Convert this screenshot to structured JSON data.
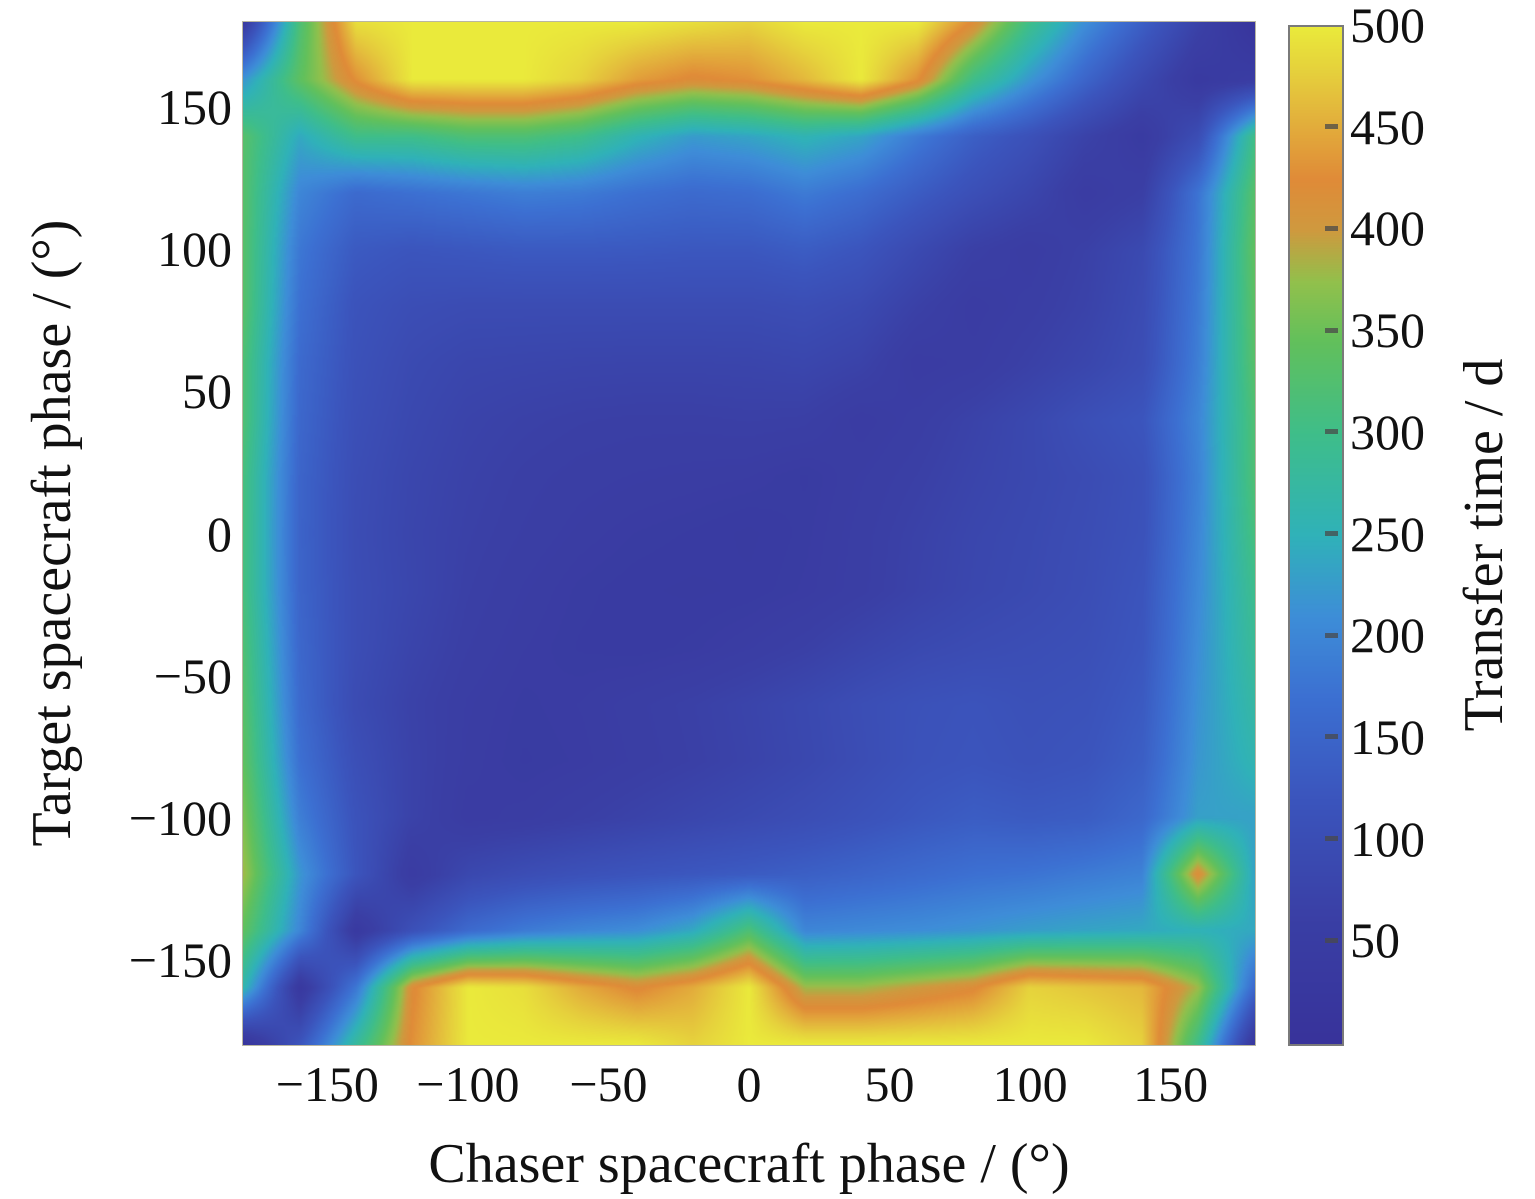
{
  "figure": {
    "background": "#ffffff",
    "text_color": "#111111"
  },
  "chart_data": {
    "type": "heatmap",
    "title": "",
    "xlabel": "Chaser spacecraft phase / (°)",
    "ylabel": "Target spacecraft phase / (°)",
    "colorbar_label": "Transfer time / d",
    "x_range": [
      -180,
      180
    ],
    "y_range": [
      -180,
      180
    ],
    "value_range": [
      0,
      500
    ],
    "x_ticks": [
      -150,
      -100,
      -50,
      0,
      50,
      100,
      150
    ],
    "y_ticks": [
      150,
      100,
      50,
      0,
      -50,
      -100,
      -150
    ],
    "colorbar_ticks": [
      500,
      450,
      400,
      350,
      300,
      250,
      200,
      150,
      100,
      50
    ],
    "grid_on": false,
    "legend_position": "colorbar-right",
    "colormap": {
      "name": "parula-like",
      "stops": [
        [
          0,
          "#38339b"
        ],
        [
          60,
          "#3a3fa5"
        ],
        [
          120,
          "#3b55bd"
        ],
        [
          170,
          "#3c70d2"
        ],
        [
          210,
          "#3e8ed8"
        ],
        [
          250,
          "#30b2b9"
        ],
        [
          300,
          "#3fbe8a"
        ],
        [
          345,
          "#62c05c"
        ],
        [
          375,
          "#93c04c"
        ],
        [
          400,
          "#cf9a3f"
        ],
        [
          425,
          "#e08b38"
        ],
        [
          455,
          "#e3b23c"
        ],
        [
          480,
          "#e6d33c"
        ],
        [
          500,
          "#eaea3b"
        ]
      ]
    },
    "grid_x": [
      -180,
      -160,
      -140,
      -120,
      -100,
      -80,
      -60,
      -40,
      -20,
      0,
      20,
      40,
      60,
      80,
      100,
      120,
      140,
      160,
      180
    ],
    "grid_y": [
      180,
      160,
      140,
      120,
      100,
      80,
      60,
      40,
      20,
      0,
      -20,
      -40,
      -60,
      -80,
      -100,
      -120,
      -140,
      -160,
      -180
    ],
    "values": [
      [
        45,
        320,
        490,
        500,
        500,
        500,
        500,
        500,
        490,
        480,
        500,
        500,
        500,
        420,
        300,
        210,
        140,
        70,
        10
      ],
      [
        220,
        340,
        430,
        500,
        500,
        500,
        480,
        440,
        420,
        430,
        460,
        500,
        430,
        300,
        220,
        150,
        90,
        35,
        50
      ],
      [
        330,
        240,
        300,
        300,
        320,
        320,
        300,
        255,
        225,
        235,
        255,
        235,
        185,
        140,
        110,
        70,
        40,
        100,
        300
      ],
      [
        330,
        200,
        160,
        170,
        180,
        190,
        185,
        170,
        160,
        165,
        185,
        165,
        135,
        105,
        80,
        45,
        60,
        175,
        330
      ],
      [
        330,
        180,
        130,
        120,
        125,
        130,
        130,
        128,
        125,
        125,
        135,
        120,
        90,
        62,
        48,
        65,
        90,
        180,
        340
      ],
      [
        330,
        170,
        115,
        100,
        95,
        95,
        95,
        95,
        95,
        95,
        100,
        90,
        65,
        45,
        55,
        70,
        95,
        185,
        335
      ],
      [
        320,
        160,
        110,
        90,
        80,
        78,
        76,
        75,
        75,
        76,
        80,
        70,
        45,
        50,
        65,
        80,
        100,
        190,
        330
      ],
      [
        320,
        155,
        105,
        85,
        72,
        66,
        62,
        60,
        60,
        62,
        60,
        45,
        55,
        70,
        85,
        105,
        120,
        200,
        320
      ],
      [
        310,
        150,
        100,
        80,
        68,
        60,
        55,
        52,
        50,
        48,
        42,
        52,
        62,
        75,
        85,
        95,
        110,
        195,
        320
      ],
      [
        310,
        148,
        98,
        78,
        65,
        57,
        50,
        45,
        42,
        38,
        44,
        55,
        68,
        80,
        88,
        98,
        112,
        200,
        310
      ],
      [
        310,
        150,
        100,
        80,
        62,
        52,
        44,
        40,
        38,
        40,
        46,
        56,
        70,
        82,
        90,
        100,
        118,
        205,
        295
      ],
      [
        320,
        155,
        100,
        75,
        58,
        48,
        42,
        40,
        44,
        52,
        62,
        76,
        88,
        95,
        100,
        105,
        122,
        210,
        285
      ],
      [
        330,
        160,
        95,
        68,
        52,
        44,
        48,
        56,
        64,
        74,
        86,
        100,
        110,
        115,
        108,
        112,
        130,
        215,
        272
      ],
      [
        340,
        170,
        105,
        70,
        50,
        42,
        46,
        54,
        62,
        72,
        84,
        98,
        112,
        118,
        112,
        118,
        138,
        220,
        258
      ],
      [
        360,
        190,
        115,
        70,
        45,
        50,
        60,
        70,
        80,
        90,
        100,
        112,
        125,
        135,
        130,
        135,
        155,
        230,
        232
      ],
      [
        380,
        220,
        120,
        45,
        85,
        100,
        110,
        118,
        125,
        132,
        140,
        150,
        160,
        170,
        175,
        185,
        195,
        420,
        235
      ],
      [
        340,
        200,
        35,
        110,
        160,
        185,
        200,
        210,
        240,
        320,
        200,
        205,
        210,
        218,
        228,
        235,
        240,
        250,
        240
      ],
      [
        260,
        30,
        180,
        420,
        500,
        490,
        450,
        420,
        450,
        500,
        380,
        380,
        400,
        420,
        480,
        470,
        460,
        380,
        160
      ],
      [
        15,
        120,
        280,
        430,
        500,
        500,
        500,
        500,
        480,
        500,
        500,
        500,
        500,
        500,
        500,
        500,
        480,
        300,
        30
      ]
    ]
  }
}
